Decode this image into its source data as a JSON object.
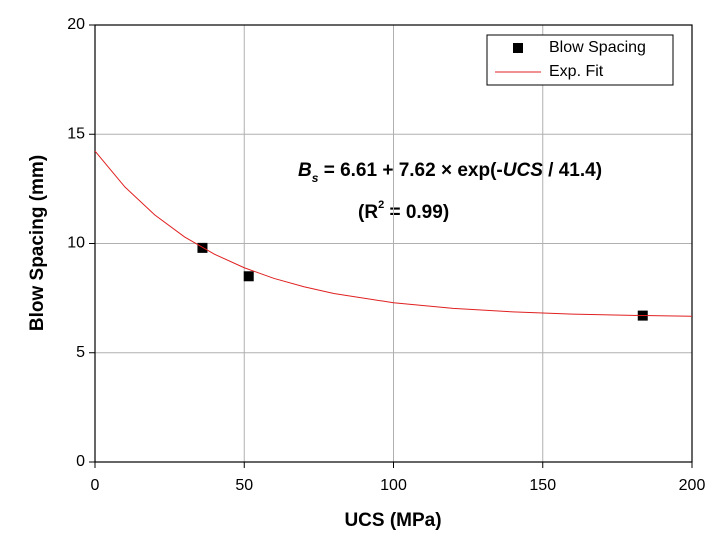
{
  "chart_data": {
    "type": "scatter",
    "xlabel": "UCS (MPa)",
    "ylabel": "Blow Spacing (mm)",
    "xlim": [
      0,
      200
    ],
    "xticks": [
      0,
      50,
      100,
      150,
      200
    ],
    "ylim": [
      0,
      20
    ],
    "yticks": [
      0,
      5,
      10,
      15,
      20
    ],
    "grid": true,
    "legend": "upper right",
    "series": [
      {
        "name": "Blow Spacing",
        "color": "#000000",
        "mode": "markers",
        "x": [
          36,
          51.5,
          183.5
        ],
        "values": [
          9.8,
          8.5,
          6.7
        ]
      },
      {
        "name": "Exp. Fit",
        "color": "#e02020",
        "mode": "line",
        "x": [
          0,
          10,
          20,
          30,
          40,
          50,
          60,
          70,
          80,
          100,
          120,
          140,
          160,
          180,
          200
        ],
        "values": [
          14.23,
          12.59,
          11.31,
          10.3,
          9.51,
          8.89,
          8.4,
          8.02,
          7.71,
          7.29,
          7.03,
          6.87,
          6.77,
          6.71,
          6.67
        ]
      }
    ],
    "annotations": [
      [
        "B",
        "s",
        " = 6.61 + 7.62 × exp(-",
        "UCS",
        " / 41.4)"
      ],
      [
        "(R",
        "2",
        " = 0.99)"
      ]
    ]
  }
}
